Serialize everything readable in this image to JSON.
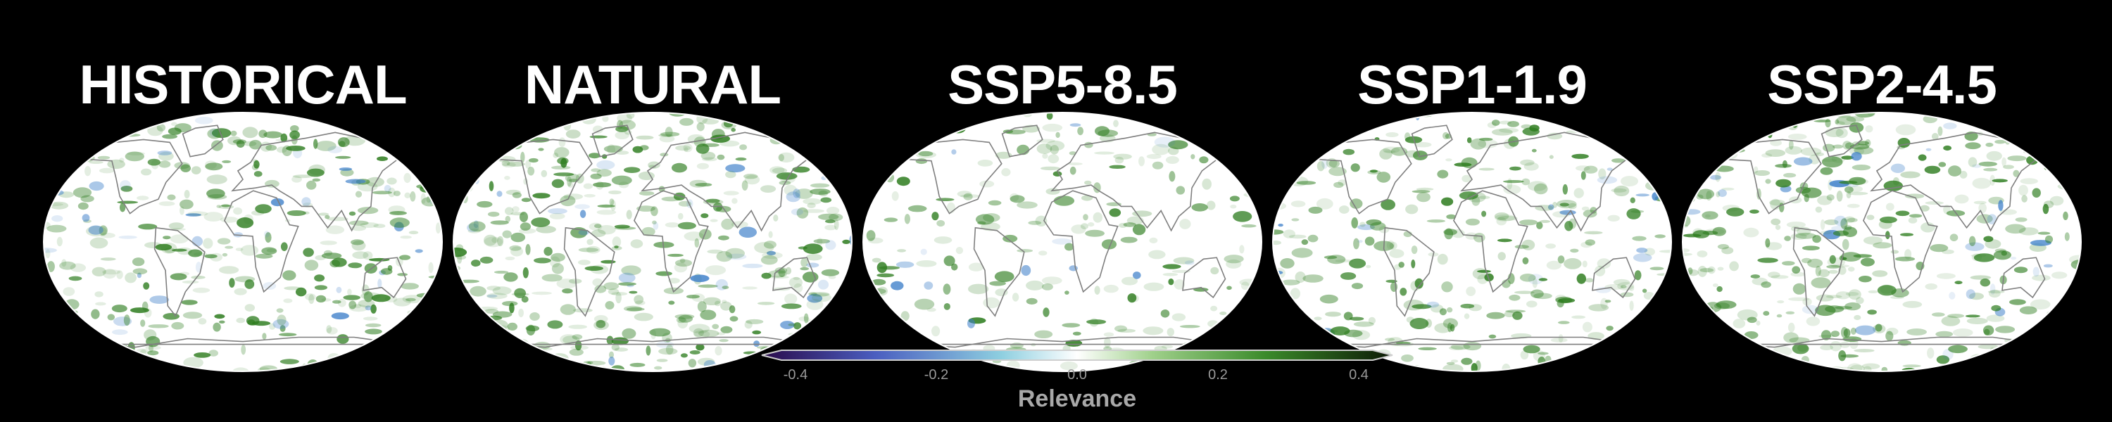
{
  "panels": [
    {
      "title": "HISTORICAL"
    },
    {
      "title": "NATURAL"
    },
    {
      "title": "SSP5-8.5"
    },
    {
      "title": "SSP1-1.9"
    },
    {
      "title": "SSP2-4.5"
    }
  ],
  "colorbar": {
    "label": "Relevance",
    "ticks": [
      "-0.4",
      "-0.2",
      "0.0",
      "0.2",
      "0.4"
    ],
    "range": [
      -0.45,
      0.45
    ],
    "extend": "both",
    "colors": {
      "min": "#2a0a4a",
      "neg_mid": "#4a5ec0",
      "neg_low": "#8ecfe0",
      "zero": "#ffffff",
      "pos_low": "#9fd08a",
      "pos_mid": "#3a8a2a",
      "max": "#0d1a05"
    }
  },
  "map": {
    "projection": "Robinson",
    "land_outline_color": "#7f7f7f",
    "positive_color": "#2e7d1f",
    "negative_color": "#3d7fc9"
  }
}
